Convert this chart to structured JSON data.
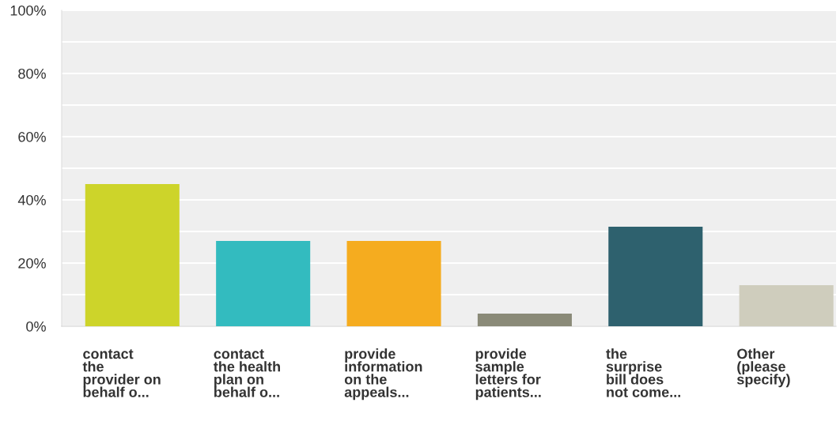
{
  "chart_data": {
    "type": "bar",
    "categories": [
      "contact\nthe\nprovider on\nbehalf o...",
      "contact\nthe health\nplan on\nbehalf o...",
      "provide\ninformation\non the\nappeals...",
      "provide\nsample\nletters for\npatients...",
      "the\nsurprise\nbill does\nnot come...",
      "Other\n(please\nspecify)"
    ],
    "values": [
      45,
      27,
      27,
      4,
      31.5,
      13
    ],
    "colors": [
      "#cdd42a",
      "#33bbbf",
      "#f5ac1f",
      "#8a8a78",
      "#2e616e",
      "#cfcdbd"
    ],
    "ylim": [
      0,
      100
    ],
    "yticks": [
      {
        "value": 0,
        "label": "0%"
      },
      {
        "value": 10,
        "label": null
      },
      {
        "value": 20,
        "label": "20%"
      },
      {
        "value": 30,
        "label": null
      },
      {
        "value": 40,
        "label": "40%"
      },
      {
        "value": 50,
        "label": null
      },
      {
        "value": 60,
        "label": "60%"
      },
      {
        "value": 70,
        "label": null
      },
      {
        "value": 80,
        "label": "80%"
      },
      {
        "value": 90,
        "label": null
      },
      {
        "value": 100,
        "label": "100%"
      }
    ],
    "grid": "y"
  }
}
